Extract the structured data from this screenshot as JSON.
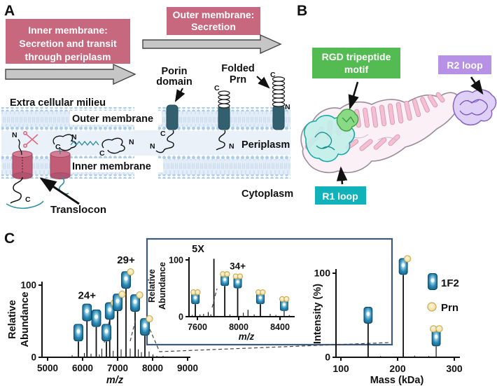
{
  "panels": {
    "a": "A",
    "b": "B",
    "c": "C"
  },
  "panel_a": {
    "stage1": {
      "line1": "Inner membrane:",
      "line2": "Secretion and transit",
      "line3": "through periplasm"
    },
    "stage2": {
      "line1": "Outer membrane:",
      "line2": "Secretion"
    },
    "porin": {
      "line1": "Porin",
      "line2": "domain"
    },
    "folded": {
      "line1": "Folded",
      "line2": "Prn"
    },
    "extracellular": "Extra cellular milieu",
    "outer_membrane": "Outer membrane",
    "periplasm": "Periplasm",
    "inner_membrane": "Inner membrane",
    "cytoplasm": "Cytoplasm",
    "translocon": "Translocon",
    "n": "N",
    "c": "C"
  },
  "panel_b": {
    "rgd": {
      "line1": "RGD tripeptide",
      "line2": "motif"
    },
    "r2": "R2 loop",
    "r1": "R1 loop"
  },
  "panel_c": {
    "legend_title_1": "1F2",
    "legend_title_2": "Prn"
  },
  "colors": {
    "rose_box": "#c8687e",
    "gray_arrow": "#c6c6c6",
    "porin_barrel": "#33606f",
    "translocon_body": "#c25d78",
    "membrane_dot": "#abcdec",
    "periplasm_bg": "#eaf1f9",
    "porin_label": "#2c6e90",
    "translocon_label": "#d4607c",
    "charge_29": "#2077b8",
    "charge_34": "#9b2040",
    "rgd_green": "#54bb52",
    "r2_purple": "#b691e5",
    "r1_cyan": "#12b2ba",
    "barrel_blue": "#1f7fae",
    "prn_yellow": "#f3e6ab",
    "inset_border": "#3e5a76"
  },
  "chart_data": [
    {
      "id": "main_spectrum",
      "type": "line",
      "xlabel": "m/z",
      "ylabel": "Relative Abundance",
      "ylabel_lines": [
        "Relative",
        "Abundance"
      ],
      "xlim": [
        5000,
        9300
      ],
      "ylim": [
        0,
        100
      ],
      "xticks": [
        5000,
        6000,
        7000,
        8000,
        9000
      ],
      "yticks": [
        0,
        100
      ],
      "grid": false,
      "peaks": [
        {
          "x": 5880,
          "h": 22,
          "icon": "1F2",
          "prn": 0
        },
        {
          "x": 6125,
          "h": 50,
          "icon": "1F2",
          "prn": 0,
          "label": "24+",
          "label_color": "#1a1a1a"
        },
        {
          "x": 6390,
          "h": 42,
          "icon": "1F2",
          "prn": 0
        },
        {
          "x": 6680,
          "h": 22,
          "icon": "1F2",
          "prn": 0
        },
        {
          "x": 6775,
          "h": 52,
          "icon": "1F2",
          "prn": 1
        },
        {
          "x": 7000,
          "h": 64,
          "icon": "1F2",
          "prn": 1
        },
        {
          "x": 7240,
          "h": 95,
          "icon": "1F2",
          "prn": 1,
          "label": "29+",
          "label_color": "#2077b8"
        },
        {
          "x": 7500,
          "h": 63,
          "icon": "1F2",
          "prn": 1
        },
        {
          "x": 7780,
          "h": 30,
          "icon": "1F2",
          "prn": 1
        }
      ],
      "minor_peaks": [
        [
          5700,
          3
        ],
        [
          6050,
          6
        ],
        [
          6240,
          5
        ],
        [
          6480,
          4
        ],
        [
          6550,
          12
        ],
        [
          6875,
          9
        ],
        [
          7100,
          11
        ],
        [
          7360,
          12
        ],
        [
          7590,
          11
        ],
        [
          7680,
          7
        ],
        [
          7900,
          8
        ],
        [
          8010,
          4
        ],
        [
          8120,
          2
        ],
        [
          8300,
          2
        ]
      ]
    },
    {
      "id": "inset_zoom",
      "type": "line",
      "scale_note": "5X",
      "xlabel": "m/z",
      "ylabel": "Relative Abundance",
      "ylabel_lines": [
        "Relative",
        "Abundance"
      ],
      "xlim": [
        7500,
        8550
      ],
      "ylim": [
        0,
        100
      ],
      "xticks": [
        7600,
        8000,
        8400
      ],
      "yticks": [
        0,
        100
      ],
      "grid": false,
      "peaks": [
        {
          "x": 7580,
          "h": 22,
          "icon": "1F2",
          "prn": 2
        },
        {
          "x": 7705,
          "h": 8
        },
        {
          "x": 7760,
          "h": 102
        },
        {
          "x": 7865,
          "h": 54,
          "icon": "1F2",
          "prn": 2
        },
        {
          "x": 7990,
          "h": 50,
          "icon": "1F2",
          "prn": 2,
          "label": "34+",
          "label_color": "#9b2040"
        },
        {
          "x": 8090,
          "h": 12
        },
        {
          "x": 8210,
          "h": 22,
          "icon": "1F2",
          "prn": 2
        },
        {
          "x": 8440,
          "h": 10,
          "icon": "1F2",
          "prn": 2
        }
      ],
      "minor_peaks": [
        [
          7550,
          3
        ],
        [
          7625,
          4
        ],
        [
          7660,
          5
        ],
        [
          7730,
          4
        ],
        [
          7915,
          4
        ],
        [
          8045,
          7
        ],
        [
          8150,
          4
        ],
        [
          8305,
          5
        ],
        [
          8360,
          3
        ],
        [
          8490,
          3
        ]
      ]
    },
    {
      "id": "deconvolved_mass",
      "type": "line",
      "xlabel": "Mass (kDa)",
      "ylabel": "Intensity (%)",
      "ylabel_lines": [
        "Intensity (%)"
      ],
      "xlim": [
        90,
        310
      ],
      "ylim": [
        0,
        100
      ],
      "xticks": [
        100,
        200,
        300
      ],
      "yticks": [
        0,
        100
      ],
      "grid": false,
      "legend_position": "right",
      "legend": [
        {
          "icon": "1F2-barrel-icon",
          "label": "1F2"
        },
        {
          "icon": "prn-icon",
          "label": "Prn"
        }
      ],
      "peaks": [
        {
          "x": 148,
          "h": 40,
          "icon": "1F2",
          "prn": 0
        },
        {
          "x": 210,
          "h": 98,
          "icon": "1F2",
          "prn": 1
        },
        {
          "x": 268,
          "h": 13,
          "icon": "1F2",
          "prn": 2
        }
      ],
      "minor_peaks": [
        [
          170,
          1.5
        ],
        [
          230,
          2
        ],
        [
          255,
          1.5
        ]
      ]
    }
  ]
}
